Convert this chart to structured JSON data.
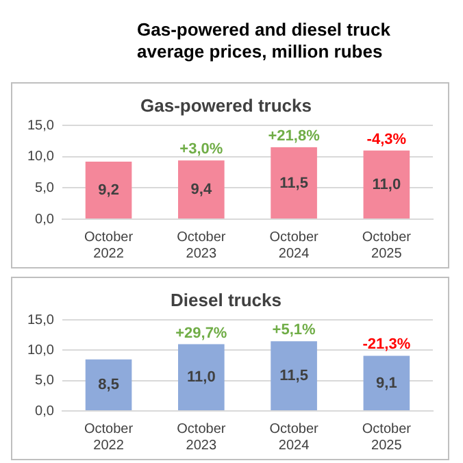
{
  "chart_data": [
    {
      "type": "bar",
      "title": "Gas-powered and diesel truck average prices, million rubes",
      "subtitle": "Gas-powered trucks",
      "categories": [
        "October 2022",
        "October 2023",
        "October 2024",
        "October 2025"
      ],
      "values": [
        9.2,
        9.4,
        11.5,
        11.0
      ],
      "value_labels": [
        "9,2",
        "9,4",
        "11,5",
        "11,0"
      ],
      "color": "#f4879a",
      "ylim": [
        0,
        15
      ],
      "yticks": [
        {
          "value": 0,
          "label": "0,0"
        },
        {
          "value": 5,
          "label": "5,0"
        },
        {
          "value": 10,
          "label": "10,0"
        },
        {
          "value": 15,
          "label": "15,0"
        }
      ],
      "grid": "y",
      "annotations": [
        {
          "text": "+3,0%",
          "x": "October 2023",
          "y": 9.4
        },
        {
          "text": "+21,8%",
          "x": "October 2024",
          "y": 11.5
        },
        {
          "text": "-4,3%",
          "x": "October 2025",
          "y": 11.0
        }
      ]
    },
    {
      "type": "bar",
      "title": "Diesel trucks",
      "categories": [
        "October 2022",
        "October 2023",
        "October 2024",
        "October 2025"
      ],
      "values": [
        8.5,
        11.0,
        11.5,
        9.1
      ],
      "value_labels": [
        "8,5",
        "11,0",
        "11,5",
        "9,1"
      ],
      "color": "#8eaadb",
      "ylim": [
        0,
        15
      ],
      "yticks": [
        {
          "value": 0,
          "label": "0,0"
        },
        {
          "value": 5,
          "label": "5,0"
        },
        {
          "value": 10,
          "label": "10,0"
        },
        {
          "value": 15,
          "label": "15,0"
        }
      ],
      "grid": "y",
      "annotations": [
        {
          "text": "+29,7%",
          "x": "October 2023",
          "y": 11.0
        },
        {
          "text": "+5,1%",
          "x": "October 2024",
          "y": 11.5
        },
        {
          "text": "-21,3%",
          "x": "October 2025",
          "y": 9.1
        }
      ]
    }
  ]
}
